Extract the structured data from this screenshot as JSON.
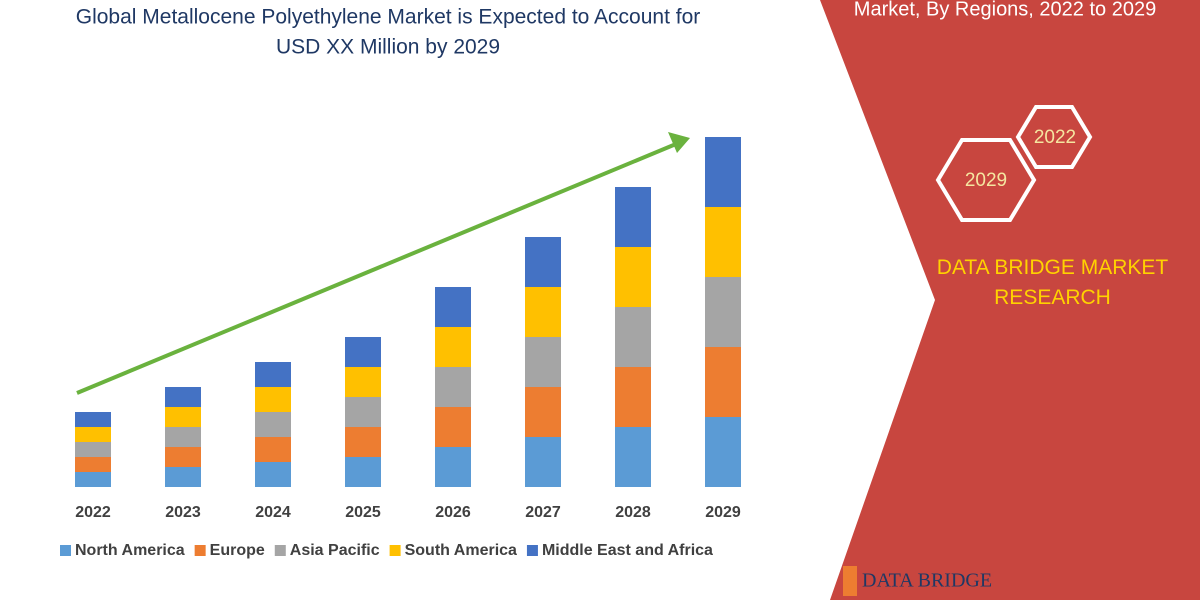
{
  "chart_data": {
    "type": "stacked-bar",
    "title": [
      "Global Metallocene Polyethylene Market is Expected to Account for",
      "USD XX Million by 2029"
    ],
    "subtitle": "Market, By Regions, 2022 to 2029",
    "categories": [
      "2022",
      "2023",
      "2024",
      "2025",
      "2026",
      "2027",
      "2028",
      "2029"
    ],
    "series": [
      {
        "name": "North America",
        "color": "#5b9bd5",
        "values": [
          15,
          20,
          25,
          30,
          40,
          50,
          60,
          70
        ]
      },
      {
        "name": "Europe",
        "color": "#ed7d31",
        "values": [
          15,
          20,
          25,
          30,
          40,
          50,
          60,
          70
        ]
      },
      {
        "name": "Asia Pacific",
        "color": "#a5a5a5",
        "values": [
          15,
          20,
          25,
          30,
          40,
          50,
          60,
          70
        ]
      },
      {
        "name": "South America",
        "color": "#ffc000",
        "values": [
          15,
          20,
          25,
          30,
          40,
          50,
          60,
          70
        ]
      },
      {
        "name": "Middle East and Africa",
        "color": "#4472c4",
        "values": [
          15,
          20,
          25,
          30,
          40,
          50,
          60,
          70
        ]
      }
    ],
    "ylim": [
      0,
      360
    ]
  },
  "panel": {
    "hex_labels": [
      "2022",
      "2029"
    ],
    "brand": "DATA BRIDGE MARKET RESEARCH",
    "logo": "DATA BRIDGE"
  }
}
